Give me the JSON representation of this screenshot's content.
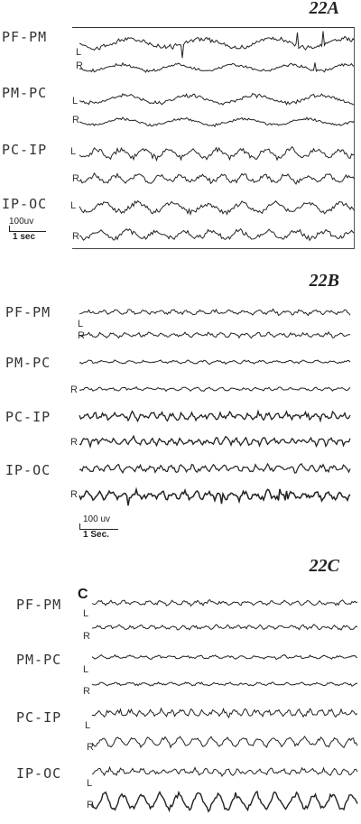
{
  "panels": [
    {
      "id": "a",
      "title": "22A",
      "leads": [
        "PF-PM",
        "PM-PC",
        "PC-IP",
        "IP-OC"
      ],
      "scale_voltage": "100uv",
      "scale_time": "1 sec"
    },
    {
      "id": "b",
      "title": "22B",
      "leads": [
        "PF-PM",
        "PM-PC",
        "PC-IP",
        "IP-OC"
      ],
      "scale_voltage": "100 uv",
      "scale_time": "1 Sec."
    },
    {
      "id": "c",
      "title": "22C",
      "marker": "C",
      "leads": [
        "PF-PM",
        "PM-PC",
        "PC-IP",
        "IP-OC"
      ]
    }
  ],
  "side_labels": {
    "left": "L",
    "right": "R"
  }
}
